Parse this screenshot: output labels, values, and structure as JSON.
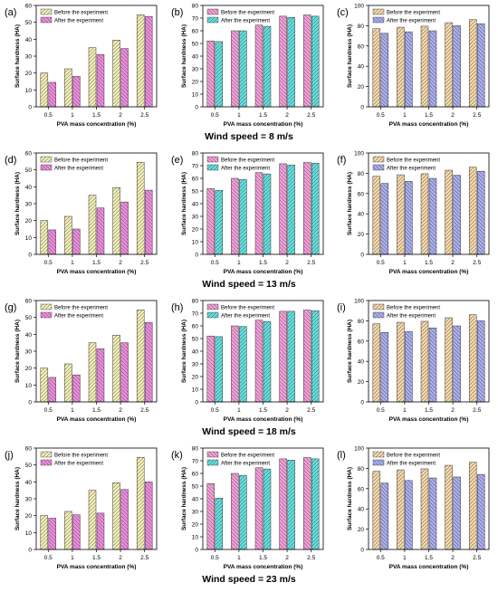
{
  "figure": {
    "rows": [
      {
        "caption": "Wind speed = 8 m/s"
      },
      {
        "caption": "Wind speed = 13 m/s"
      },
      {
        "caption": "Wind speed = 18 m/s"
      },
      {
        "caption": "Wind speed = 23 m/s"
      }
    ]
  },
  "colors": {
    "before_yellow": "#f3efb5",
    "after_pink": "#f08be0",
    "before_pink": "#f59fd9",
    "after_cyan": "#62dfe0",
    "before_orange": "#f5d7a8",
    "after_blue": "#a9aef0",
    "hatch": "#333333"
  },
  "chart_data": [
    {
      "panel": "a",
      "type": "bar",
      "xlabel": "PVA mass concentration (%)",
      "ylabel": "Surface hardness (HA)",
      "categories": [
        "0.5",
        "1",
        "1.5",
        "2",
        "2.5"
      ],
      "ylim": [
        0,
        60
      ],
      "yticks": [
        0,
        10,
        20,
        30,
        40,
        50,
        60
      ],
      "legend": "top-left",
      "series": [
        {
          "name": "Before the experiment",
          "values": [
            20,
            22.5,
            35,
            39.5,
            54.5
          ]
        },
        {
          "name": "After the experiment",
          "values": [
            14.5,
            18,
            31,
            34.5,
            53.5
          ]
        }
      ]
    },
    {
      "panel": "b",
      "type": "bar",
      "xlabel": "PVA mass concentration (%)",
      "ylabel": "Surface hardness (HA)",
      "categories": [
        "0.5",
        "1",
        "1.5",
        "2",
        "2.5"
      ],
      "ylim": [
        0,
        80
      ],
      "yticks": [
        0,
        10,
        20,
        30,
        40,
        50,
        60,
        70,
        80
      ],
      "legend": "top-left",
      "series": [
        {
          "name": "Before the experiment",
          "values": [
            52,
            60,
            64.5,
            71.5,
            72.5
          ]
        },
        {
          "name": "After the experiment",
          "values": [
            51.5,
            60,
            63.5,
            70.5,
            71.5
          ]
        }
      ]
    },
    {
      "panel": "c",
      "type": "bar",
      "xlabel": "PVA mass concentration (%)",
      "ylabel": "Surface hardness (HA)",
      "categories": [
        "0.5",
        "1",
        "1.5",
        "2",
        "2.5"
      ],
      "ylim": [
        0,
        100
      ],
      "yticks": [
        0,
        20,
        40,
        60,
        80,
        100
      ],
      "legend": "top-left",
      "series": [
        {
          "name": "Before the experiment",
          "values": [
            77,
            78.5,
            79.5,
            83,
            86
          ]
        },
        {
          "name": "After the experiment",
          "values": [
            72.5,
            74,
            75,
            80,
            82
          ]
        }
      ]
    },
    {
      "panel": "d",
      "type": "bar",
      "xlabel": "PVA mass concentration (%)",
      "ylabel": "Surface hardness (HA)",
      "categories": [
        "0.5",
        "1",
        "1.5",
        "2",
        "2.5"
      ],
      "ylim": [
        0,
        60
      ],
      "yticks": [
        0,
        10,
        20,
        30,
        40,
        50,
        60
      ],
      "legend": "top-left",
      "series": [
        {
          "name": "Before the experiment",
          "values": [
            20,
            22.5,
            35,
            39.5,
            54.5
          ]
        },
        {
          "name": "After the experiment",
          "values": [
            14.5,
            15,
            27.5,
            31,
            38
          ]
        }
      ]
    },
    {
      "panel": "e",
      "type": "bar",
      "xlabel": "PVA mass concentration (%)",
      "ylabel": "Surface hardness (HA)",
      "categories": [
        "0.5",
        "1",
        "1.5",
        "2",
        "2.5"
      ],
      "ylim": [
        0,
        80
      ],
      "yticks": [
        0,
        10,
        20,
        30,
        40,
        50,
        60,
        70,
        80
      ],
      "legend": "top-left",
      "series": [
        {
          "name": "Before the experiment",
          "values": [
            52,
            60,
            64.5,
            71.5,
            72.5
          ]
        },
        {
          "name": "After the experiment",
          "values": [
            50.5,
            59,
            63.5,
            70.5,
            72
          ]
        }
      ]
    },
    {
      "panel": "f",
      "type": "bar",
      "xlabel": "PVA mass concentration (%)",
      "ylabel": "Surface hardness (HA)",
      "categories": [
        "0.5",
        "1",
        "1.5",
        "2",
        "2.5"
      ],
      "ylim": [
        0,
        100
      ],
      "yticks": [
        0,
        20,
        40,
        60,
        80,
        100
      ],
      "legend": "top-left",
      "series": [
        {
          "name": "Before the experiment",
          "values": [
            77,
            78.5,
            79.5,
            83,
            86
          ]
        },
        {
          "name": "After the experiment",
          "values": [
            70,
            72,
            75,
            78,
            82
          ]
        }
      ]
    },
    {
      "panel": "g",
      "type": "bar",
      "xlabel": "PVA mass concentration (%)",
      "ylabel": "Surface hardness (HA)",
      "categories": [
        "0.5",
        "1",
        "1.5",
        "2",
        "2.5"
      ],
      "ylim": [
        0,
        60
      ],
      "yticks": [
        0,
        10,
        20,
        30,
        40,
        50,
        60
      ],
      "legend": "top-left",
      "series": [
        {
          "name": "Before the experiment",
          "values": [
            20,
            22.5,
            35,
            39.5,
            54.5
          ]
        },
        {
          "name": "After the experiment",
          "values": [
            14.5,
            16,
            31.5,
            35,
            47
          ]
        }
      ]
    },
    {
      "panel": "h",
      "type": "bar",
      "xlabel": "PVA mass concentration (%)",
      "ylabel": "Surface hardness (HA)",
      "categories": [
        "0.5",
        "1",
        "1.5",
        "2",
        "2.5"
      ],
      "ylim": [
        0,
        80
      ],
      "yticks": [
        0,
        10,
        20,
        30,
        40,
        50,
        60,
        70,
        80
      ],
      "legend": "top-left",
      "series": [
        {
          "name": "Before the experiment",
          "values": [
            52,
            60,
            64.5,
            71.5,
            72.5
          ]
        },
        {
          "name": "After the experiment",
          "values": [
            51.5,
            59.5,
            63.5,
            71.5,
            72
          ]
        }
      ]
    },
    {
      "panel": "i",
      "type": "bar",
      "xlabel": "PVA mass concentration (%)",
      "ylabel": "Surface hardness (HA)",
      "categories": [
        "0.5",
        "1",
        "1.5",
        "2",
        "2.5"
      ],
      "ylim": [
        0,
        100
      ],
      "yticks": [
        0,
        20,
        40,
        60,
        80,
        100
      ],
      "legend": "top-left",
      "series": [
        {
          "name": "Before the experiment",
          "values": [
            77,
            78.5,
            79.5,
            83,
            86
          ]
        },
        {
          "name": "After the experiment",
          "values": [
            68.5,
            69.5,
            73,
            75,
            80
          ]
        }
      ]
    },
    {
      "panel": "j",
      "type": "bar",
      "xlabel": "PVA mass concentration (%)",
      "ylabel": "Surface hardness (HA)",
      "categories": [
        "0.5",
        "1",
        "1.5",
        "2",
        "2.5"
      ],
      "ylim": [
        0,
        60
      ],
      "yticks": [
        0,
        10,
        20,
        30,
        40,
        50,
        60
      ],
      "legend": "top-left",
      "series": [
        {
          "name": "Before the experiment",
          "values": [
            20,
            22.5,
            35,
            39.5,
            54.5
          ]
        },
        {
          "name": "After the experiment",
          "values": [
            18.5,
            20.5,
            21.5,
            35.5,
            40
          ]
        }
      ]
    },
    {
      "panel": "k",
      "type": "bar",
      "xlabel": "PVA mass concentration (%)",
      "ylabel": "Surface hardness (HA)",
      "categories": [
        "0.5",
        "1",
        "1.5",
        "2",
        "2.5"
      ],
      "ylim": [
        0,
        80
      ],
      "yticks": [
        0,
        10,
        20,
        30,
        40,
        50,
        60,
        70,
        80
      ],
      "legend": "top-left",
      "series": [
        {
          "name": "Before the experiment",
          "values": [
            52,
            60,
            64.5,
            71.5,
            72.5
          ]
        },
        {
          "name": "After the experiment",
          "values": [
            40.5,
            58.5,
            63.5,
            70.5,
            71.5
          ]
        }
      ]
    },
    {
      "panel": "l",
      "type": "bar",
      "xlabel": "PVA mass concentration (%)",
      "ylabel": "Surface hardness (HA)",
      "categories": [
        "0.5",
        "1",
        "1.5",
        "2",
        "2.5"
      ],
      "ylim": [
        0,
        100
      ],
      "yticks": [
        0,
        20,
        40,
        60,
        80,
        100
      ],
      "legend": "top-left",
      "series": [
        {
          "name": "Before the experiment",
          "values": [
            77,
            78.5,
            79.5,
            83,
            86
          ]
        },
        {
          "name": "After the experiment",
          "values": [
            65.5,
            68,
            70.5,
            71.5,
            74
          ]
        }
      ]
    }
  ]
}
